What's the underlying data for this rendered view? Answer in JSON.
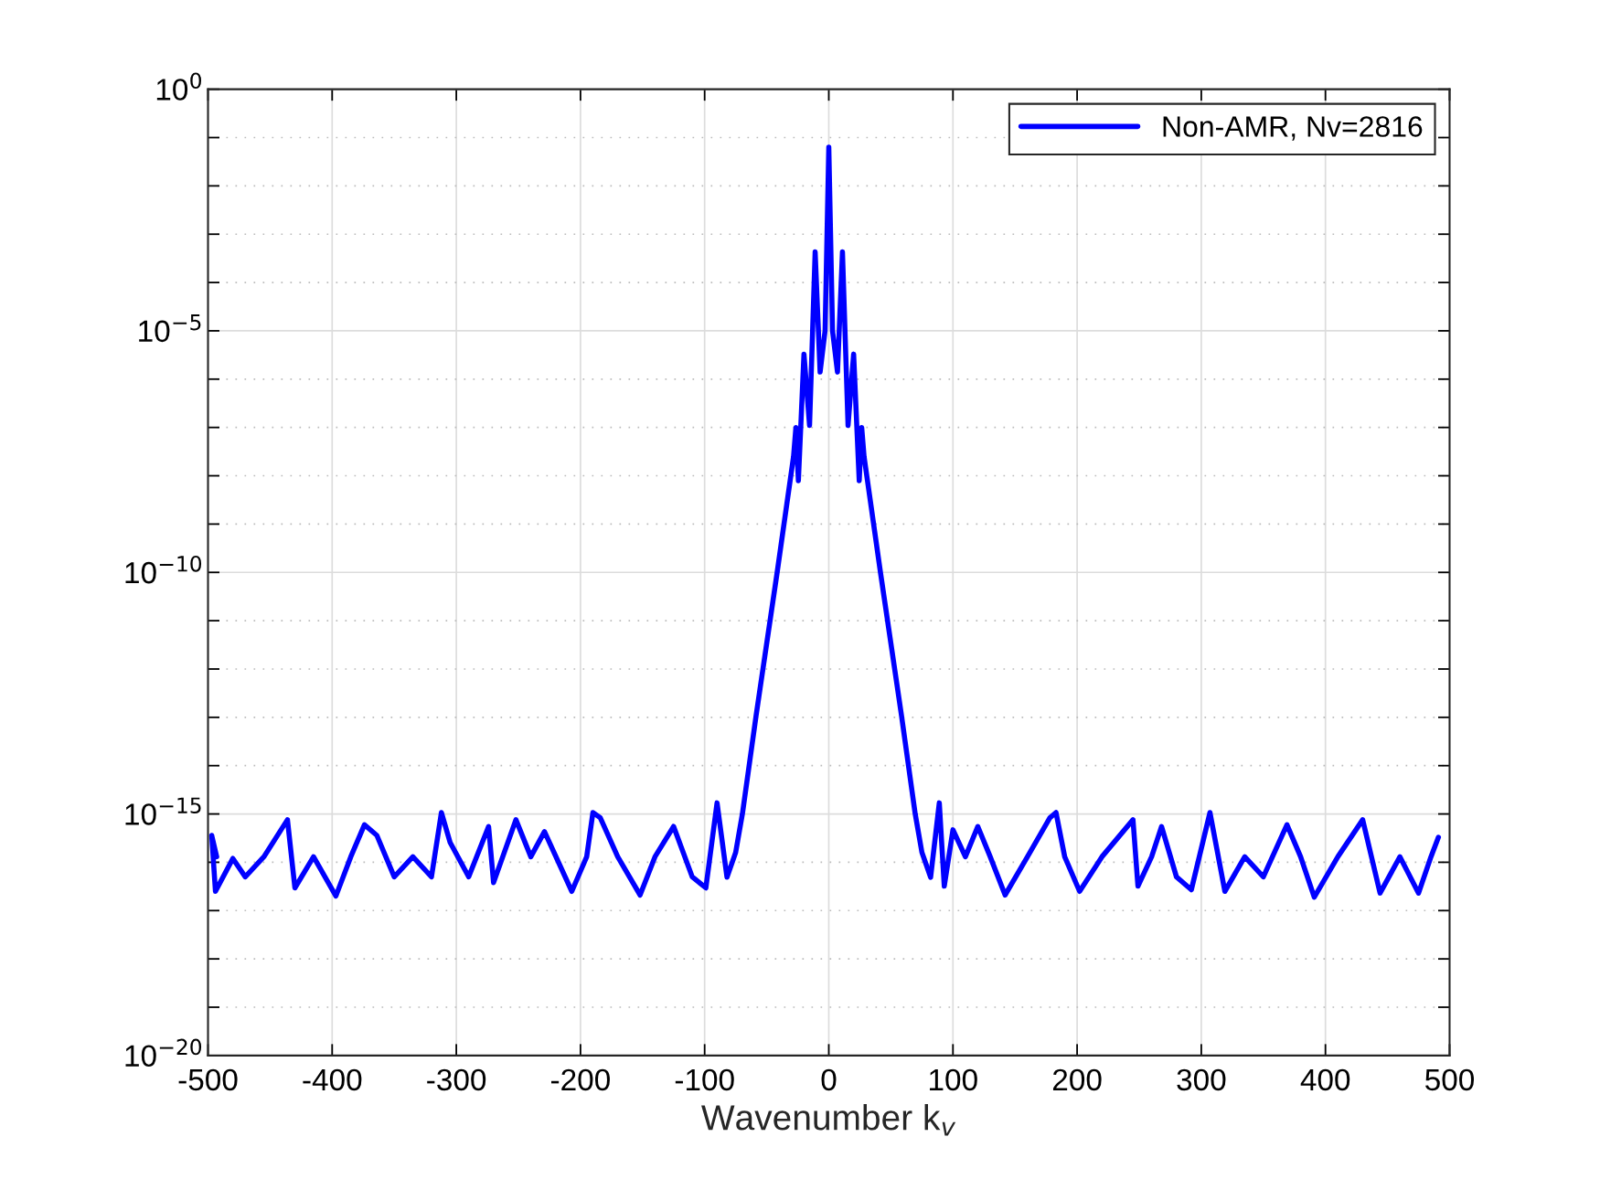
{
  "chart_data": {
    "type": "line",
    "xlabel": "Wavenumber k$_{v}$",
    "x": [
      -493,
      -497,
      -494,
      -480,
      -470,
      -455,
      -436,
      -430,
      -415,
      -397,
      -385,
      -374,
      -364,
      -350,
      -335,
      -320,
      -312,
      -305,
      -290,
      -274,
      -270,
      -252,
      -240,
      -229,
      -207,
      -195,
      -190,
      -184,
      -170,
      -152,
      -140,
      -125,
      -110,
      -99,
      -90,
      -82,
      -75,
      -69.6,
      -58.6,
      -41.6,
      -28.4,
      -26.5,
      -24.5,
      -20,
      -15.5,
      -11,
      -7,
      -3,
      0,
      3,
      7,
      11,
      15.5,
      20,
      24.5,
      26.5,
      28.4,
      41.6,
      58.6,
      69.6,
      75,
      82,
      89,
      93,
      100,
      110,
      120,
      130,
      142,
      160,
      178,
      183,
      190,
      202,
      220,
      245,
      249,
      260,
      268,
      280,
      292,
      307,
      319,
      335,
      350,
      369,
      380,
      391,
      410,
      430,
      444,
      460,
      475,
      485,
      491
    ],
    "series": [
      {
        "name": "Non-AMR, Nv=2816",
        "color": "#0000ff",
        "values": [
          1.3e-16,
          3.6e-16,
          2.5e-17,
          1.2e-16,
          5e-17,
          1.3e-16,
          7.6e-16,
          2.95e-17,
          1.3e-16,
          2e-17,
          1.3e-16,
          6e-16,
          3.6e-16,
          5e-17,
          1.3e-16,
          5e-17,
          1.07e-15,
          2.57e-16,
          5e-17,
          5.5e-16,
          3.8e-17,
          7.6e-16,
          1.3e-16,
          4.3e-16,
          2.5e-17,
          1.3e-16,
          1.07e-15,
          8.3e-16,
          1.3e-16,
          2.1e-17,
          1.3e-16,
          5.5e-16,
          5e-17,
          2.95e-17,
          1.7e-15,
          4.9e-17,
          1.6e-16,
          1e-15,
          1.07e-13,
          1e-10,
          2.5e-08,
          1e-07,
          7.9e-09,
          3.3e-06,
          1.1e-07,
          0.00043,
          1.4e-06,
          1e-05,
          0.063,
          1e-05,
          1.4e-06,
          0.00043,
          1.1e-07,
          3.3e-06,
          7.9e-09,
          1e-07,
          2.5e-08,
          1e-10,
          1.07e-13,
          1e-15,
          1.6e-16,
          4.9e-17,
          1.7e-15,
          3.2e-17,
          4.7e-16,
          1.3e-16,
          5.5e-16,
          1.3e-16,
          2.1e-17,
          1.3e-16,
          8.3e-16,
          1.07e-15,
          1.3e-16,
          2.5e-17,
          1.3e-16,
          7.6e-16,
          3.2e-17,
          1.3e-16,
          5.5e-16,
          5e-17,
          2.7e-17,
          1.07e-15,
          2.5e-17,
          1.3e-16,
          5e-17,
          6e-16,
          1.3e-16,
          1.9e-17,
          1.3e-16,
          7.6e-16,
          2.3e-17,
          1.3e-16,
          2.3e-17,
          1.3e-16,
          3.3e-16
        ]
      }
    ],
    "log": "y",
    "xlim": [
      -500,
      500
    ],
    "ylim": [
      1e-20,
      1
    ],
    "xticks": [
      -500,
      -400,
      -300,
      -200,
      -100,
      0,
      100,
      200,
      300,
      400,
      500
    ],
    "yticks": [
      {
        "value": 1e-20,
        "label": "10$^{−20}$"
      },
      {
        "value": 1e-19,
        "label": null
      },
      {
        "value": 1e-18,
        "label": null
      },
      {
        "value": 1e-17,
        "label": null
      },
      {
        "value": 1e-16,
        "label": null
      },
      {
        "value": 1e-15,
        "label": "10$^{−15}$"
      },
      {
        "value": 1e-14,
        "label": null
      },
      {
        "value": 1e-13,
        "label": null
      },
      {
        "value": 1e-12,
        "label": null
      },
      {
        "value": 1e-11,
        "label": null
      },
      {
        "value": 1e-10,
        "label": "10$^{−10}$"
      },
      {
        "value": 1e-09,
        "label": null
      },
      {
        "value": 1e-08,
        "label": null
      },
      {
        "value": 1e-07,
        "label": null
      },
      {
        "value": 1e-06,
        "label": null
      },
      {
        "value": 1e-05,
        "label": "10$^{−5}$"
      },
      {
        "value": 0.0001,
        "label": null
      },
      {
        "value": 0.001,
        "label": null
      },
      {
        "value": 0.01,
        "label": null
      },
      {
        "value": 0.1,
        "label": null
      },
      {
        "value": 1,
        "label": "10$^{0}$"
      }
    ],
    "grid": true,
    "legend": "top right",
    "marker": "none",
    "line_style": "solid"
  }
}
